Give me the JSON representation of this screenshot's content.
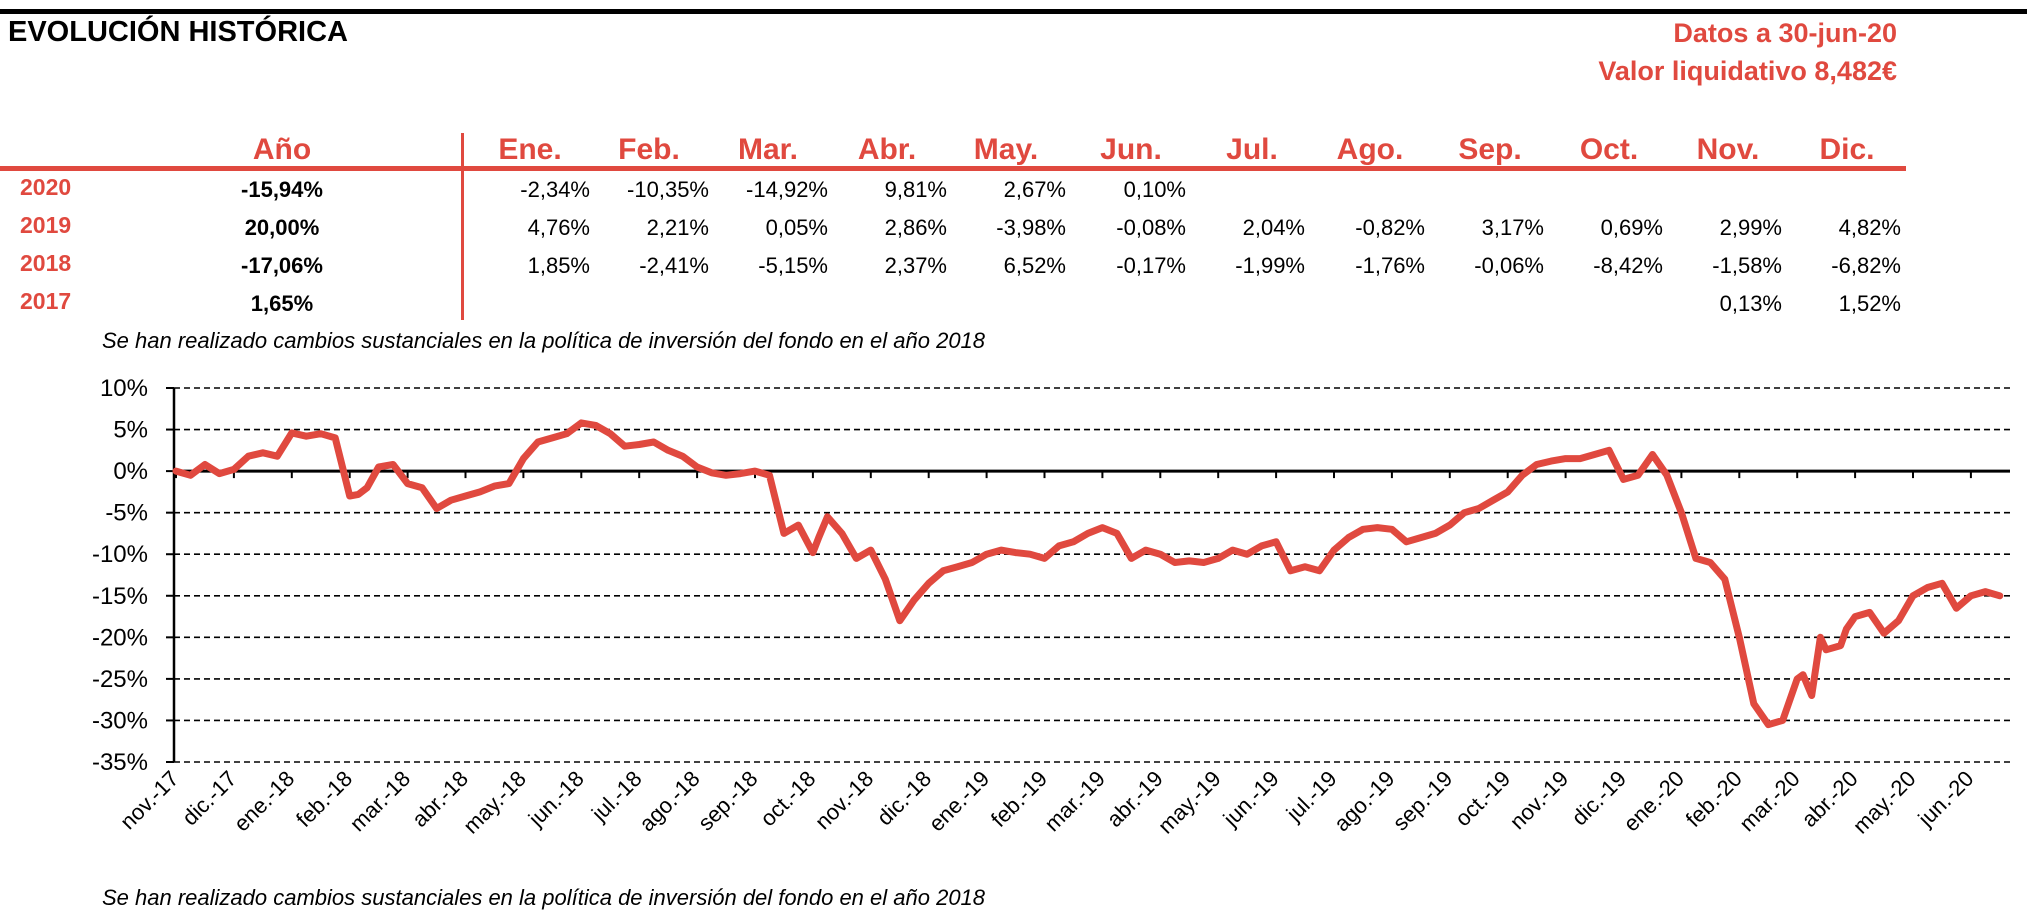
{
  "header": {
    "title": "EVOLUCIÓN HISTÓRICA",
    "date_label": "Datos a 30-jun-20",
    "nav_label": "Valor liquidativo 8,482€"
  },
  "table": {
    "year_header": "Año",
    "months": [
      "Ene.",
      "Feb.",
      "Mar.",
      "Abr.",
      "May.",
      "Jun.",
      "Jul.",
      "Ago.",
      "Sep.",
      "Oct.",
      "Nov.",
      "Dic."
    ],
    "rows": [
      {
        "year": "2020",
        "total": "-15,94%",
        "values": [
          "-2,34%",
          "-10,35%",
          "-14,92%",
          "9,81%",
          "2,67%",
          "0,10%",
          "",
          "",
          "",
          "",
          "",
          ""
        ]
      },
      {
        "year": "2019",
        "total": "20,00%",
        "values": [
          "4,76%",
          "2,21%",
          "0,05%",
          "2,86%",
          "-3,98%",
          "-0,08%",
          "2,04%",
          "-0,82%",
          "3,17%",
          "0,69%",
          "2,99%",
          "4,82%"
        ]
      },
      {
        "year": "2018",
        "total": "-17,06%",
        "values": [
          "1,85%",
          "-2,41%",
          "-5,15%",
          "2,37%",
          "6,52%",
          "-0,17%",
          "-1,99%",
          "-1,76%",
          "-0,06%",
          "-8,42%",
          "-1,58%",
          "-6,82%"
        ]
      },
      {
        "year": "2017",
        "total": "1,65%",
        "values": [
          "",
          "",
          "",
          "",
          "",
          "",
          "",
          "",
          "",
          "",
          "0,13%",
          "1,52%"
        ]
      }
    ]
  },
  "notes": {
    "top": "Se han realizado cambios sustanciales en la política de inversión del fondo en el año 2018",
    "bottom": "Se han realizado cambios sustanciales en la política de inversión del fondo en el año 2018"
  },
  "colors": {
    "accent": "#e0493f",
    "line": "#e0493f",
    "text": "#000000"
  },
  "chart_data": {
    "type": "line",
    "title": "",
    "xlabel": "",
    "ylabel": "",
    "ylim": [
      -35,
      10
    ],
    "y_ticks": [
      10,
      5,
      0,
      -5,
      -10,
      -15,
      -20,
      -25,
      -30,
      -35
    ],
    "y_tick_labels": [
      "10%",
      "5%",
      "0%",
      "-5%",
      "-10%",
      "-15%",
      "-20%",
      "-25%",
      "-30%",
      "-35%"
    ],
    "x_tick_labels": [
      "nov.-17",
      "dic.-17",
      "ene.-18",
      "feb.-18",
      "mar.-18",
      "abr.-18",
      "may.-18",
      "jun.-18",
      "jul.-18",
      "ago.-18",
      "sep.-18",
      "oct.-18",
      "nov.-18",
      "dic.-18",
      "ene.-19",
      "feb.-19",
      "mar.-19",
      "abr.-19",
      "may.-19",
      "jun.-19",
      "jul.-19",
      "ago.-19",
      "sep.-19",
      "oct.-19",
      "nov.-19",
      "dic.-19",
      "ene.-20",
      "feb.-20",
      "mar.-20",
      "abr.-20",
      "may.-20",
      "jun.-20"
    ],
    "grid": "dashed horizontal",
    "legend": "none",
    "series": [
      {
        "x": [
          0,
          0.25,
          0.5,
          0.75,
          1,
          1.25,
          1.5,
          1.75,
          2,
          2.25,
          2.5,
          2.75,
          3,
          3.15,
          3.3,
          3.5,
          3.75,
          4,
          4.25,
          4.5,
          4.75,
          5,
          5.25,
          5.5,
          5.75,
          6,
          6.25,
          6.5,
          6.75,
          7,
          7.25,
          7.5,
          7.75,
          8,
          8.25,
          8.5,
          8.75,
          9,
          9.25,
          9.5,
          9.75,
          10,
          10.25,
          10.5,
          10.75,
          11,
          11.1,
          11.25,
          11.5,
          11.75,
          12,
          12.25,
          12.5,
          12.75,
          13,
          13.25,
          13.5,
          13.75,
          14,
          14.25,
          14.5,
          14.75,
          15,
          15.25,
          15.5,
          15.75,
          16,
          16.25,
          16.5,
          16.75,
          17,
          17.25,
          17.5,
          17.75,
          18,
          18.25,
          18.5,
          18.75,
          19,
          19.25,
          19.5,
          19.75,
          20,
          20.25,
          20.5,
          20.75,
          21,
          21.25,
          21.5,
          21.75,
          22,
          22.25,
          22.5,
          22.75,
          23,
          23.25,
          23.5,
          23.75,
          24,
          24.25,
          24.5,
          24.75,
          25,
          25.25,
          25.5,
          25.75,
          26,
          26.25,
          26.5,
          26.75,
          27,
          27.25,
          27.5,
          27.75,
          28,
          28.1,
          28.25,
          28.4,
          28.5,
          28.75,
          28.85,
          29,
          29.25,
          29.5,
          29.75,
          30,
          30.25,
          30.5,
          30.75,
          31,
          31.25,
          31.5
        ],
        "values": [
          0,
          -0.5,
          0.8,
          -0.3,
          0.2,
          1.8,
          2.2,
          1.8,
          4.6,
          4.2,
          4.5,
          4.0,
          -3.0,
          -2.8,
          -2.0,
          0.5,
          0.8,
          -1.5,
          -2.0,
          -4.5,
          -3.5,
          -3.0,
          -2.5,
          -1.8,
          -1.5,
          1.5,
          3.5,
          4.0,
          4.5,
          5.8,
          5.5,
          4.5,
          3.0,
          3.2,
          3.5,
          2.5,
          1.8,
          0.5,
          -0.2,
          -0.5,
          -0.3,
          0,
          -0.5,
          -7.5,
          -6.5,
          -9.8,
          -8.0,
          -5.5,
          -7.5,
          -10.5,
          -9.5,
          -13.0,
          -18.0,
          -15.5,
          -13.5,
          -12.0,
          -11.5,
          -11.0,
          -10.0,
          -9.5,
          -9.8,
          -10.0,
          -10.5,
          -9.0,
          -8.5,
          -7.5,
          -6.8,
          -7.5,
          -10.5,
          -9.5,
          -10.0,
          -11.0,
          -10.8,
          -11.0,
          -10.5,
          -9.5,
          -10.0,
          -9.0,
          -8.5,
          -12.0,
          -11.5,
          -12.0,
          -9.5,
          -8.0,
          -7.0,
          -6.8,
          -7.0,
          -8.5,
          -8.0,
          -7.5,
          -6.5,
          -5.0,
          -4.5,
          -3.5,
          -2.5,
          -0.5,
          0.8,
          1.2,
          1.5,
          1.5,
          2.0,
          2.5,
          -1.0,
          -0.5,
          2.0,
          -0.5,
          -5.0,
          -10.5,
          -11.0,
          -13.0,
          -20.0,
          -28.0,
          -30.5,
          -30.0,
          -25.0,
          -24.5,
          -27.0,
          -20.0,
          -21.5,
          -21.0,
          -19.0,
          -17.5,
          -17.0,
          -19.5,
          -18.0,
          -15.0,
          -14.0,
          -13.5,
          -16.5,
          -15.0,
          -14.5,
          -15.0
        ]
      }
    ]
  }
}
